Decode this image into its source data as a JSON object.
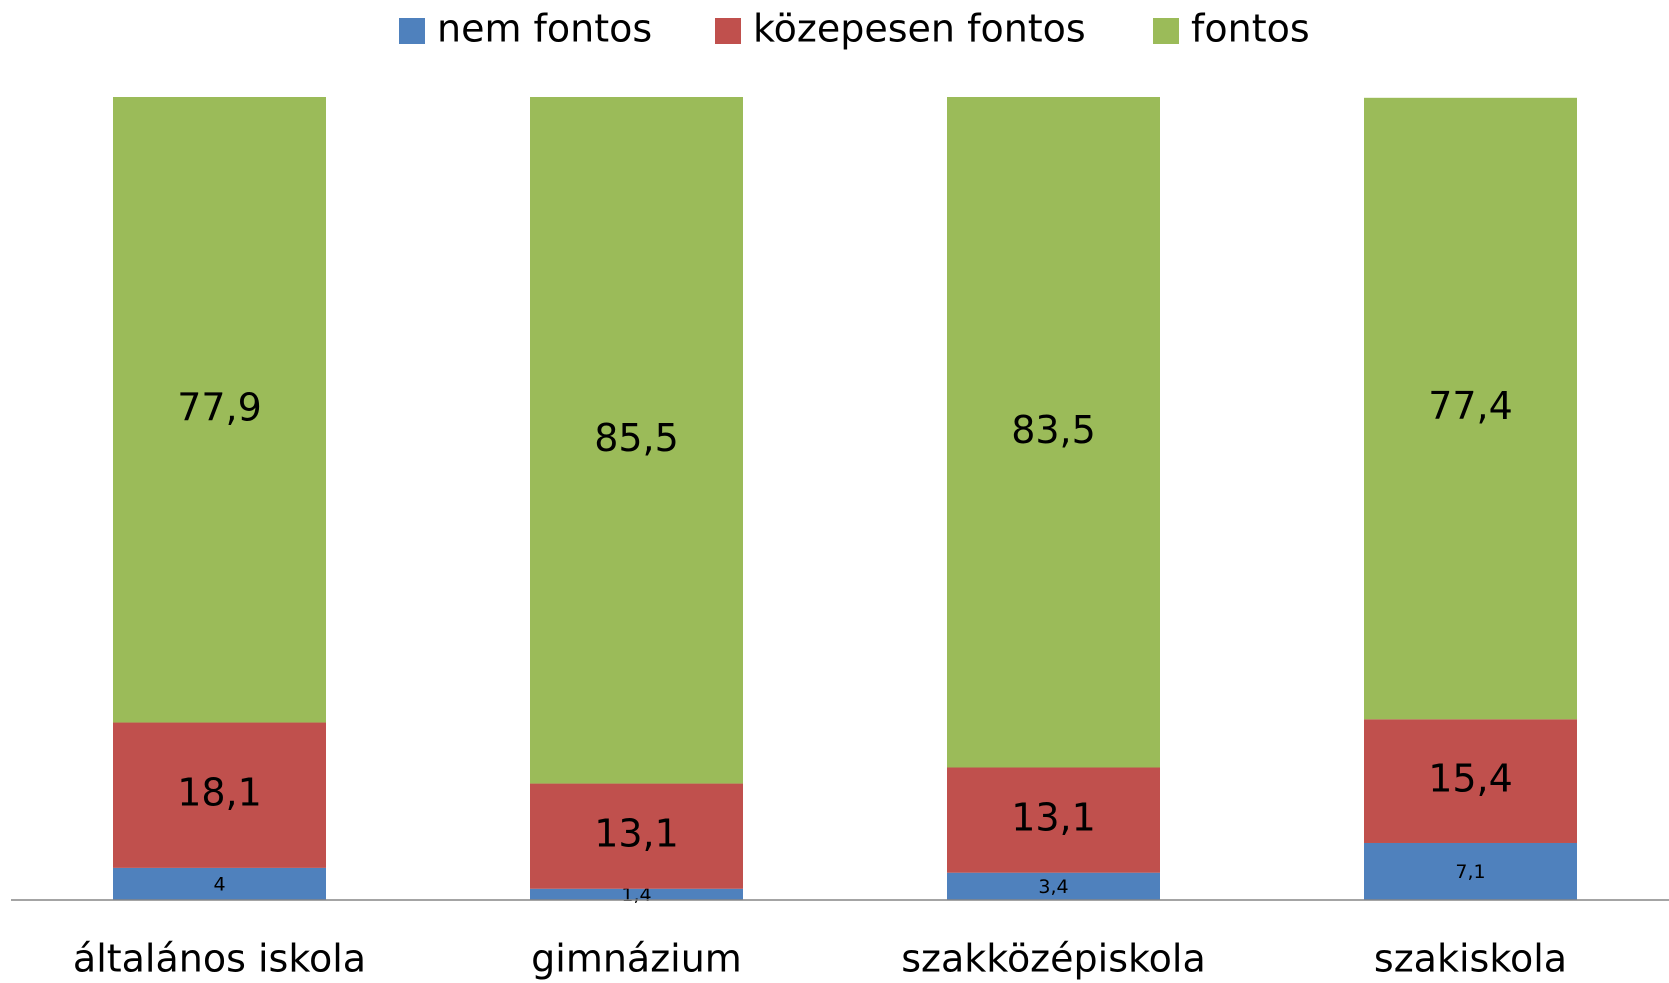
{
  "chart_data": {
    "type": "stacked_bar",
    "categories": [
      "általános iskola",
      "gimnázium",
      "szakközépiskola",
      "szakiskola"
    ],
    "series": [
      {
        "name": "nem fontos",
        "color": "#4f81bd",
        "values": [
          4,
          1.4,
          3.4,
          7.1
        ],
        "value_labels": [
          "4",
          "1,4",
          "3,4",
          "7,1"
        ]
      },
      {
        "name": "közepesen fontos",
        "color": "#c0504d",
        "values": [
          18.1,
          13.1,
          13.1,
          15.4
        ],
        "value_labels": [
          "18,1",
          "13,1",
          "13,1",
          "15,4"
        ]
      },
      {
        "name": "fontos",
        "color": "#9bbb59",
        "values": [
          77.9,
          85.5,
          83.5,
          77.4
        ],
        "value_labels": [
          "77,9",
          "85,5",
          "83,5",
          "77,4"
        ]
      }
    ],
    "legend": "top"
  }
}
